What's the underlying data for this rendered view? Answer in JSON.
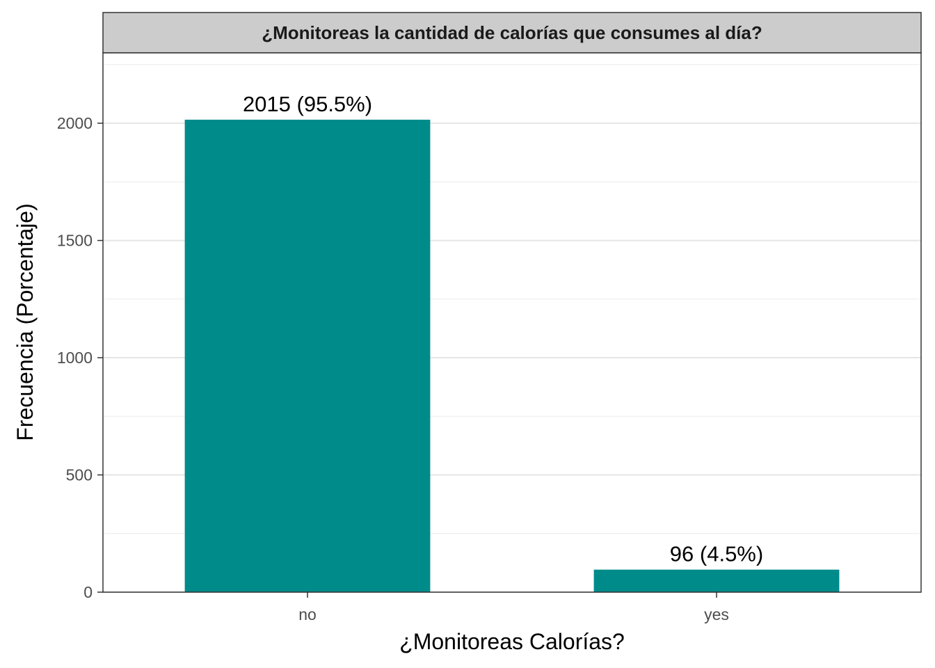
{
  "chart_data": {
    "type": "bar",
    "facet_title": "¿Monitoreas la cantidad de calorías que consumes al día?",
    "xlabel": "¿Monitoreas Calorías?",
    "ylabel": "Frecuencia (Porcentaje)",
    "categories": [
      "no",
      "yes"
    ],
    "values": [
      2015,
      96
    ],
    "data_labels": [
      "2015 (95.5%)",
      "96 (4.5%)"
    ],
    "yticks": [
      0,
      500,
      1000,
      1500,
      2000
    ],
    "ylim": [
      0,
      2300
    ],
    "grid": true,
    "legend": "none",
    "bar_color": "#008B8B",
    "strip_color": "#CCCCCC"
  }
}
